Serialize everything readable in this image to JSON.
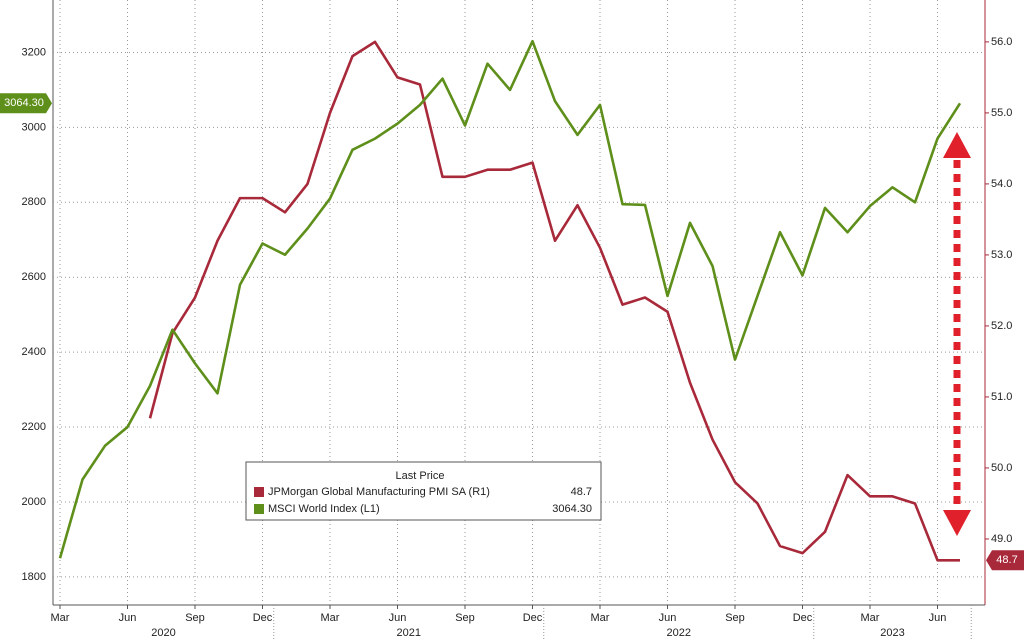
{
  "chart_data": {
    "type": "line",
    "categories": [
      "Mar",
      null,
      null,
      "Jun",
      null,
      null,
      "Sep",
      null,
      null,
      "Dec",
      null,
      null,
      "Mar",
      null,
      null,
      "Jun",
      null,
      null,
      "Sep",
      null,
      null,
      "Dec",
      null,
      null,
      "Mar",
      null,
      null,
      "Jun",
      null,
      null,
      "Sep",
      null,
      null,
      "Dec",
      null,
      null,
      "Mar",
      null,
      null,
      "Jun",
      null
    ],
    "years": [
      "2020",
      "2021",
      "2022",
      "2023"
    ],
    "legend_title": "Last Price",
    "series": [
      {
        "name": "JPMorgan Global Manufacturing PMI SA  (R1)",
        "color": "#a8293a",
        "axis": "y2",
        "last_label": "48.7",
        "values": [
          null,
          null,
          null,
          null,
          50.7,
          51.9,
          52.4,
          53.2,
          53.8,
          53.8,
          53.6,
          54.0,
          55.0,
          55.8,
          56.0,
          55.5,
          55.4,
          54.1,
          54.1,
          54.2,
          54.2,
          54.3,
          53.2,
          53.7,
          53.1,
          52.3,
          52.4,
          52.2,
          51.2,
          50.4,
          49.8,
          49.5,
          48.9,
          48.8,
          49.1,
          49.9,
          49.6,
          49.6,
          49.5,
          48.7,
          48.7
        ]
      },
      {
        "name": "MSCI World Index  (L1)",
        "color": "#5e8f1a",
        "last_label": "3064.30",
        "values": [
          1850,
          2060,
          2150,
          2200,
          2310,
          2460,
          2370,
          2290,
          2580,
          2690,
          2660,
          2730,
          2810,
          2940,
          2970,
          3010,
          3060,
          3130,
          3005,
          3170,
          3100,
          3230,
          3070,
          2980,
          3060,
          2795,
          2793,
          2550,
          2745,
          2630,
          2380,
          2550,
          2720,
          2605,
          2785,
          2720,
          2790,
          2840,
          2800,
          2970,
          3064.3
        ]
      }
    ],
    "ylim": [
      1725,
      3340
    ],
    "yticks": [
      1800,
      2000,
      2200,
      2400,
      2600,
      2800,
      3000,
      3200
    ],
    "y2lim": [
      48.07,
      56.59
    ],
    "y2ticks": [
      {
        "value": 49,
        "label": "49.0"
      },
      {
        "value": 50,
        "label": "50.0"
      },
      {
        "value": 51,
        "label": "51.0"
      },
      {
        "value": 52,
        "label": "52.0"
      },
      {
        "value": 53,
        "label": "53.0"
      },
      {
        "value": 54,
        "label": "54.0"
      },
      {
        "value": 55,
        "label": "55.0"
      },
      {
        "value": 56,
        "label": "56.0"
      }
    ],
    "grid": true
  }
}
